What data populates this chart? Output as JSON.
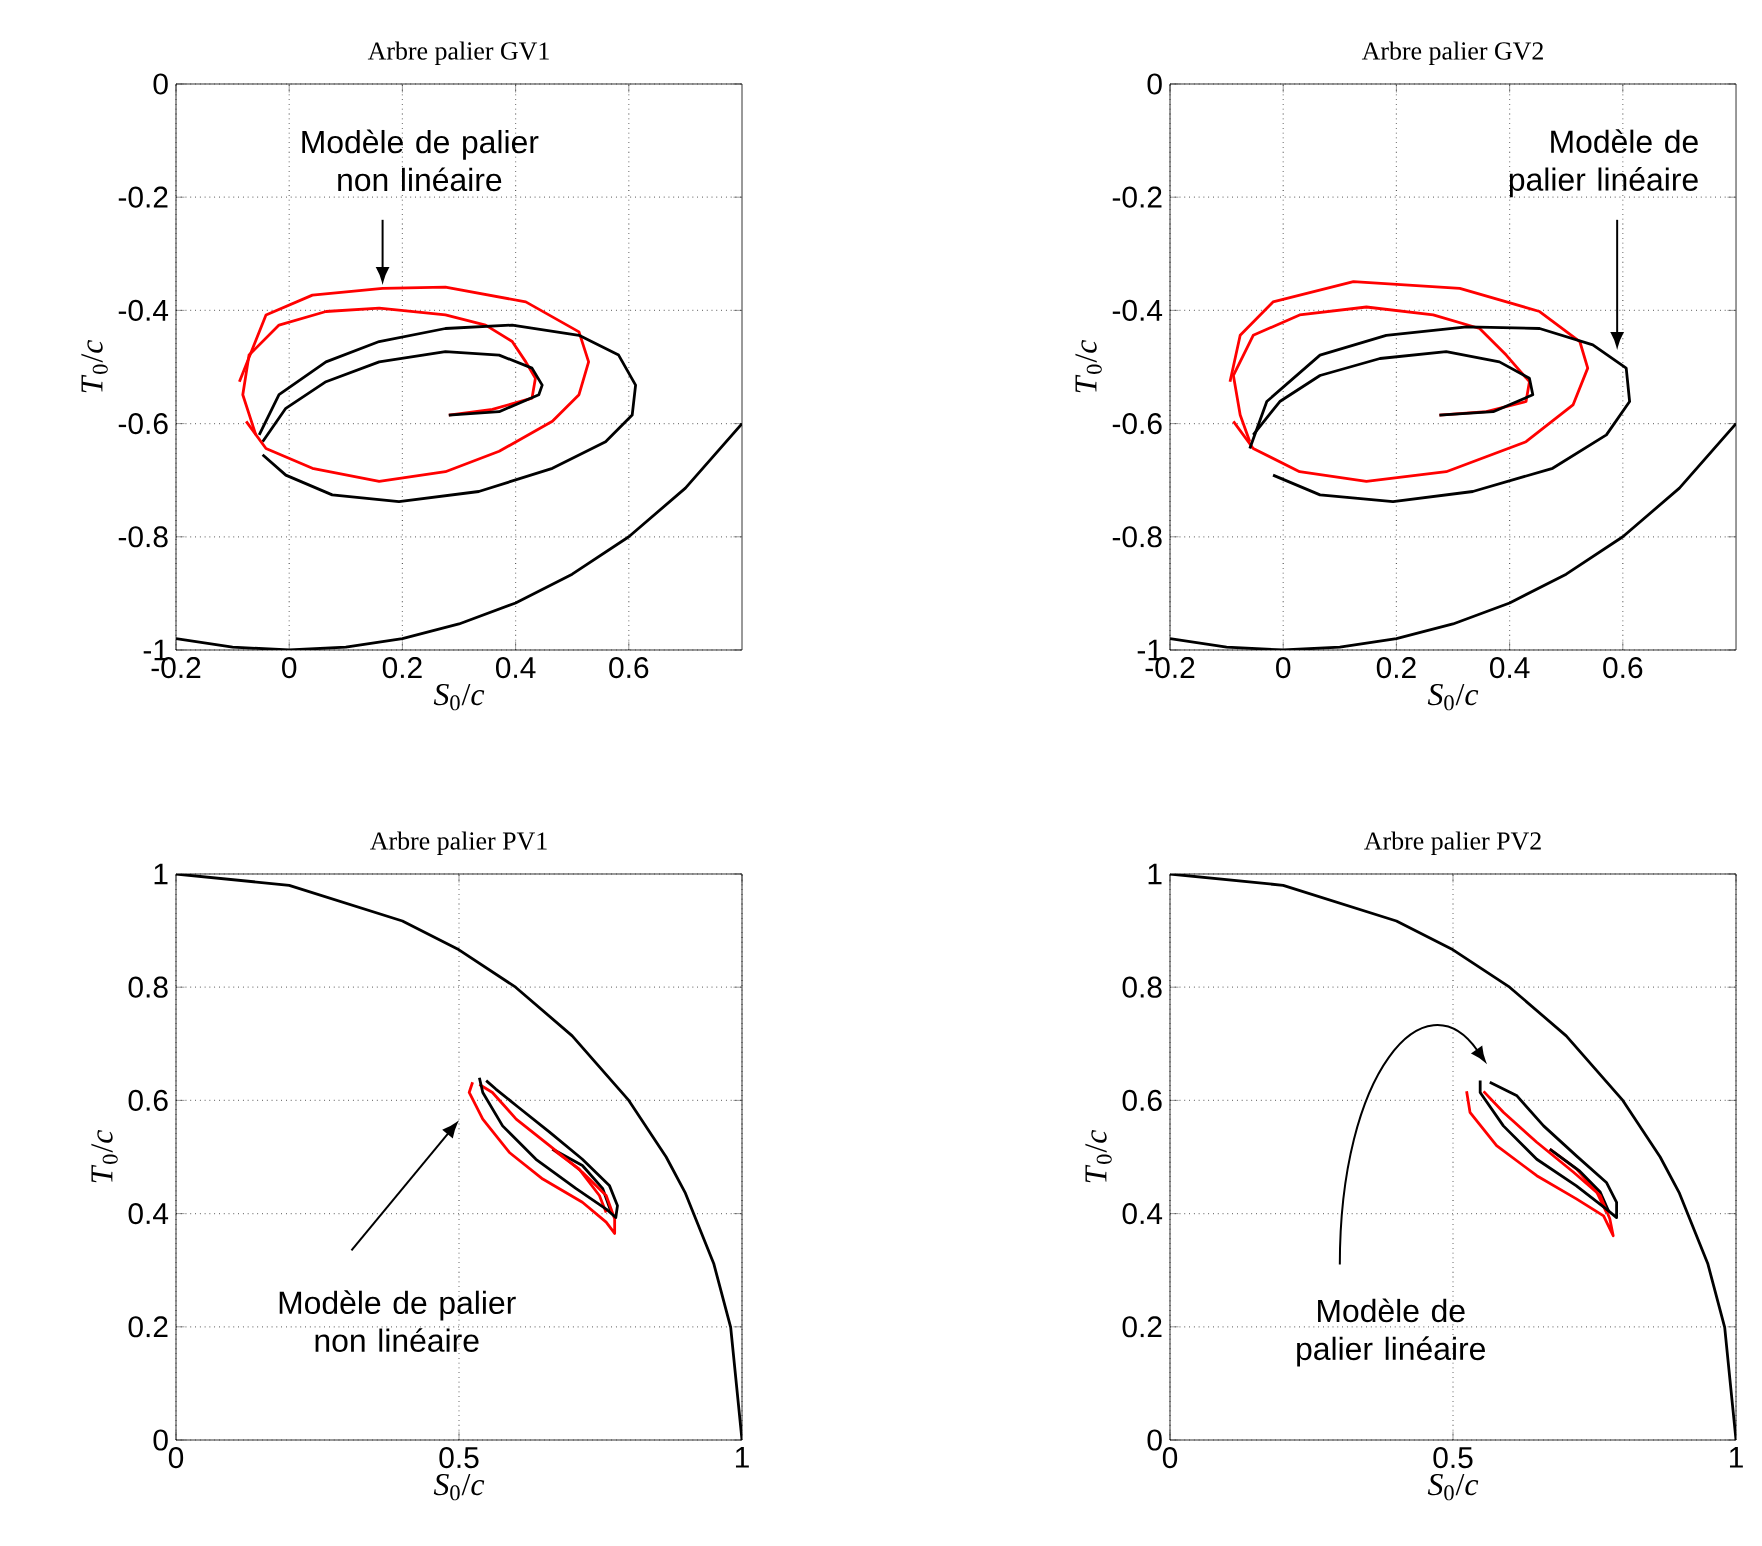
{
  "chart_data": [
    {
      "type": "line",
      "title": "Arbre palier GV1",
      "xlabel": "*S*$_{0}$/*c*",
      "ylabel": "*T*$_{0}$/*c*",
      "xlim": [
        -0.2,
        0.8
      ],
      "ylim": [
        -1,
        0
      ],
      "xticks": [
        -0.2,
        0,
        0.2,
        0.4,
        0.6
      ],
      "yticks": [
        -1,
        -0.8,
        -0.6,
        -0.4,
        -0.2,
        0
      ],
      "grid": true,
      "series": [
        {
          "color": "#000000",
          "x": [
            -0.2,
            -0.1,
            0,
            0.1,
            0.2,
            0.3,
            0.4,
            0.5,
            0.6,
            0.7,
            0.8
          ],
          "values": [
            -0.98,
            -0.995,
            -1,
            -0.995,
            -0.98,
            -0.954,
            -0.917,
            -0.866,
            -0.8,
            -0.714,
            -0.6
          ]
        },
        {
          "color": "#ff0000",
          "x": [
            0.282,
            0.359,
            0.429,
            0.435,
            0.418,
            0.394,
            0.347,
            0.276,
            0.159,
            0.065,
            -0.018,
            -0.071,
            -0.082,
            -0.059
          ],
          "values": [
            -0.585,
            -0.575,
            -0.555,
            -0.52,
            -0.491,
            -0.455,
            -0.426,
            -0.408,
            -0.396,
            -0.402,
            -0.426,
            -0.479,
            -0.549,
            -0.62
          ]
        },
        {
          "color": "#000000",
          "x": [
            0.282,
            0.371,
            0.441,
            0.447,
            0.429,
            0.371,
            0.276,
            0.159,
            0.065,
            -0.006,
            -0.047
          ],
          "values": [
            -0.585,
            -0.579,
            -0.549,
            -0.532,
            -0.502,
            -0.479,
            -0.473,
            -0.491,
            -0.526,
            -0.573,
            -0.632
          ]
        },
        {
          "color": "#ff0000",
          "x": [
            -0.088,
            -0.041,
            0.041,
            0.165,
            0.276,
            0.418,
            0.512,
            0.529,
            0.512,
            0.465,
            0.371,
            0.276,
            0.159,
            0.041,
            -0.041,
            -0.076
          ],
          "values": [
            -0.526,
            -0.408,
            -0.373,
            -0.361,
            -0.359,
            -0.385,
            -0.438,
            -0.491,
            -0.549,
            -0.596,
            -0.649,
            -0.685,
            -0.702,
            -0.679,
            -0.644,
            -0.596
          ]
        },
        {
          "color": "#000000",
          "x": [
            -0.053,
            -0.018,
            0.065,
            0.159,
            0.276,
            0.394,
            0.512,
            0.582,
            0.612,
            0.606,
            0.559,
            0.465,
            0.335,
            0.194,
            0.076,
            -0.006,
            -0.047
          ],
          "values": [
            -0.62,
            -0.549,
            -0.491,
            -0.455,
            -0.432,
            -0.426,
            -0.444,
            -0.479,
            -0.532,
            -0.585,
            -0.632,
            -0.679,
            -0.72,
            -0.738,
            -0.726,
            -0.691,
            -0.655
          ]
        }
      ],
      "annotations": [
        "Modèle de palier non linéaire"
      ]
    },
    {
      "type": "line",
      "title": "Arbre palier GV2",
      "xlabel": "*S*$_{0}$/*c*",
      "ylabel": "*T*$_{0}$/*c*",
      "xlim": [
        -0.2,
        0.8
      ],
      "ylim": [
        -1,
        0
      ],
      "xticks": [
        -0.2,
        0,
        0.2,
        0.4,
        0.6
      ],
      "yticks": [
        -1,
        -0.8,
        -0.6,
        -0.4,
        -0.2,
        0
      ],
      "grid": true,
      "series": [
        {
          "color": "#000000",
          "x": [
            -0.2,
            -0.1,
            0,
            0.1,
            0.2,
            0.3,
            0.4,
            0.5,
            0.6,
            0.7,
            0.8
          ],
          "values": [
            -0.98,
            -0.995,
            -1,
            -0.995,
            -0.98,
            -0.954,
            -0.917,
            -0.866,
            -0.8,
            -0.714,
            -0.6
          ]
        },
        {
          "color": "#ff0000",
          "x": [
            0.276,
            0.359,
            0.429,
            0.435,
            0.394,
            0.347,
            0.265,
            0.147,
            0.029,
            -0.053,
            -0.088,
            -0.076,
            -0.059
          ],
          "values": [
            -0.585,
            -0.579,
            -0.561,
            -0.526,
            -0.479,
            -0.432,
            -0.408,
            -0.394,
            -0.408,
            -0.444,
            -0.515,
            -0.585,
            -0.632
          ]
        },
        {
          "color": "#000000",
          "x": [
            0.276,
            0.371,
            0.441,
            0.435,
            0.382,
            0.288,
            0.171,
            0.065,
            -0.006,
            -0.053
          ],
          "values": [
            -0.585,
            -0.579,
            -0.549,
            -0.52,
            -0.491,
            -0.473,
            -0.485,
            -0.515,
            -0.561,
            -0.62
          ]
        },
        {
          "color": "#ff0000",
          "x": [
            -0.094,
            -0.076,
            -0.018,
            0.124,
            0.312,
            0.453,
            0.524,
            0.538,
            0.512,
            0.429,
            0.288,
            0.147,
            0.029,
            -0.053,
            -0.088
          ],
          "values": [
            -0.526,
            -0.444,
            -0.385,
            -0.349,
            -0.361,
            -0.402,
            -0.455,
            -0.502,
            -0.567,
            -0.632,
            -0.685,
            -0.702,
            -0.685,
            -0.644,
            -0.596
          ]
        },
        {
          "color": "#000000",
          "x": [
            -0.059,
            -0.029,
            0.065,
            0.182,
            0.324,
            0.453,
            0.547,
            0.606,
            0.612,
            0.571,
            0.476,
            0.335,
            0.194,
            0.065,
            -0.018
          ],
          "values": [
            -0.644,
            -0.561,
            -0.479,
            -0.444,
            -0.429,
            -0.432,
            -0.461,
            -0.502,
            -0.561,
            -0.62,
            -0.679,
            -0.72,
            -0.738,
            -0.726,
            -0.691
          ]
        }
      ],
      "annotations": [
        "Modèle de palier linéaire"
      ]
    },
    {
      "type": "line",
      "title": "Arbre palier PV1",
      "xlabel": "*S*$_{0}$/*c*",
      "ylabel": "*T*$_{0}$/*c*",
      "xlim": [
        0,
        1
      ],
      "ylim": [
        0,
        1
      ],
      "xticks": [
        0,
        0.5,
        1
      ],
      "yticks": [
        0,
        0.2,
        0.4,
        0.6,
        0.8,
        1
      ],
      "grid": true,
      "series": [
        {
          "color": "#000000",
          "x": [
            0,
            0.2,
            0.4,
            0.5,
            0.6,
            0.7,
            0.8,
            0.866,
            0.9,
            0.95,
            0.98,
            1
          ],
          "values": [
            1,
            0.98,
            0.917,
            0.866,
            0.8,
            0.714,
            0.6,
            0.5,
            0.436,
            0.312,
            0.199,
            0
          ]
        },
        {
          "color": "#ff0000",
          "x": [
            0.665,
            0.712,
            0.748,
            0.76
          ],
          "values": [
            0.514,
            0.479,
            0.432,
            0.402
          ]
        },
        {
          "color": "#000000",
          "x": [
            0.665,
            0.718,
            0.754,
            0.769
          ],
          "values": [
            0.514,
            0.485,
            0.444,
            0.402
          ]
        },
        {
          "color": "#ff0000",
          "x": [
            0.524,
            0.518,
            0.542,
            0.589,
            0.648,
            0.718,
            0.76,
            0.775,
            0.775,
            0.76,
            0.718,
            0.66,
            0.601,
            0.559,
            0.536
          ],
          "values": [
            0.632,
            0.614,
            0.567,
            0.508,
            0.461,
            0.42,
            0.385,
            0.365,
            0.391,
            0.432,
            0.473,
            0.52,
            0.567,
            0.614,
            0.628
          ]
        },
        {
          "color": "#000000",
          "x": [
            0.536,
            0.542,
            0.577,
            0.636,
            0.707,
            0.76,
            0.777,
            0.78,
            0.766,
            0.718,
            0.66,
            0.601,
            0.565,
            0.548
          ],
          "values": [
            0.64,
            0.614,
            0.555,
            0.496,
            0.444,
            0.408,
            0.393,
            0.414,
            0.449,
            0.496,
            0.544,
            0.591,
            0.62,
            0.635
          ]
        }
      ],
      "annotations": [
        "Modèle de palier non linéaire"
      ]
    },
    {
      "type": "line",
      "title": "Arbre palier PV2",
      "xlabel": "*S*$_{0}$/*c*",
      "ylabel": "*T*$_{0}$/*c*",
      "xlim": [
        0,
        1
      ],
      "ylim": [
        0,
        1
      ],
      "xticks": [
        0,
        0.5,
        1
      ],
      "yticks": [
        0,
        0.2,
        0.4,
        0.6,
        0.8,
        1
      ],
      "grid": true,
      "series": [
        {
          "color": "#000000",
          "x": [
            0,
            0.2,
            0.4,
            0.5,
            0.6,
            0.7,
            0.8,
            0.866,
            0.9,
            0.95,
            0.98,
            1
          ],
          "values": [
            1,
            0.98,
            0.917,
            0.866,
            0.8,
            0.714,
            0.6,
            0.5,
            0.436,
            0.312,
            0.199,
            0
          ]
        },
        {
          "color": "#ff0000",
          "x": [
            0.671,
            0.718,
            0.754,
            0.771
          ],
          "values": [
            0.514,
            0.479,
            0.438,
            0.402
          ]
        },
        {
          "color": "#000000",
          "x": [
            0.671,
            0.724,
            0.76,
            0.775
          ],
          "values": [
            0.514,
            0.475,
            0.438,
            0.404
          ]
        },
        {
          "color": "#ff0000",
          "x": [
            0.524,
            0.53,
            0.577,
            0.648,
            0.718,
            0.766,
            0.783,
            0.777,
            0.76,
            0.713,
            0.648,
            0.589,
            0.554
          ],
          "values": [
            0.616,
            0.579,
            0.52,
            0.467,
            0.426,
            0.396,
            0.361,
            0.391,
            0.432,
            0.473,
            0.526,
            0.579,
            0.616
          ]
        },
        {
          "color": "#000000",
          "x": [
            0.548,
            0.548,
            0.589,
            0.648,
            0.718,
            0.771,
            0.789,
            0.789,
            0.771,
            0.718,
            0.66,
            0.613,
            0.565
          ],
          "values": [
            0.635,
            0.614,
            0.555,
            0.496,
            0.449,
            0.408,
            0.393,
            0.42,
            0.455,
            0.502,
            0.555,
            0.608,
            0.632
          ]
        }
      ],
      "annotations": [
        "Modèle de palier linéaire"
      ]
    }
  ]
}
